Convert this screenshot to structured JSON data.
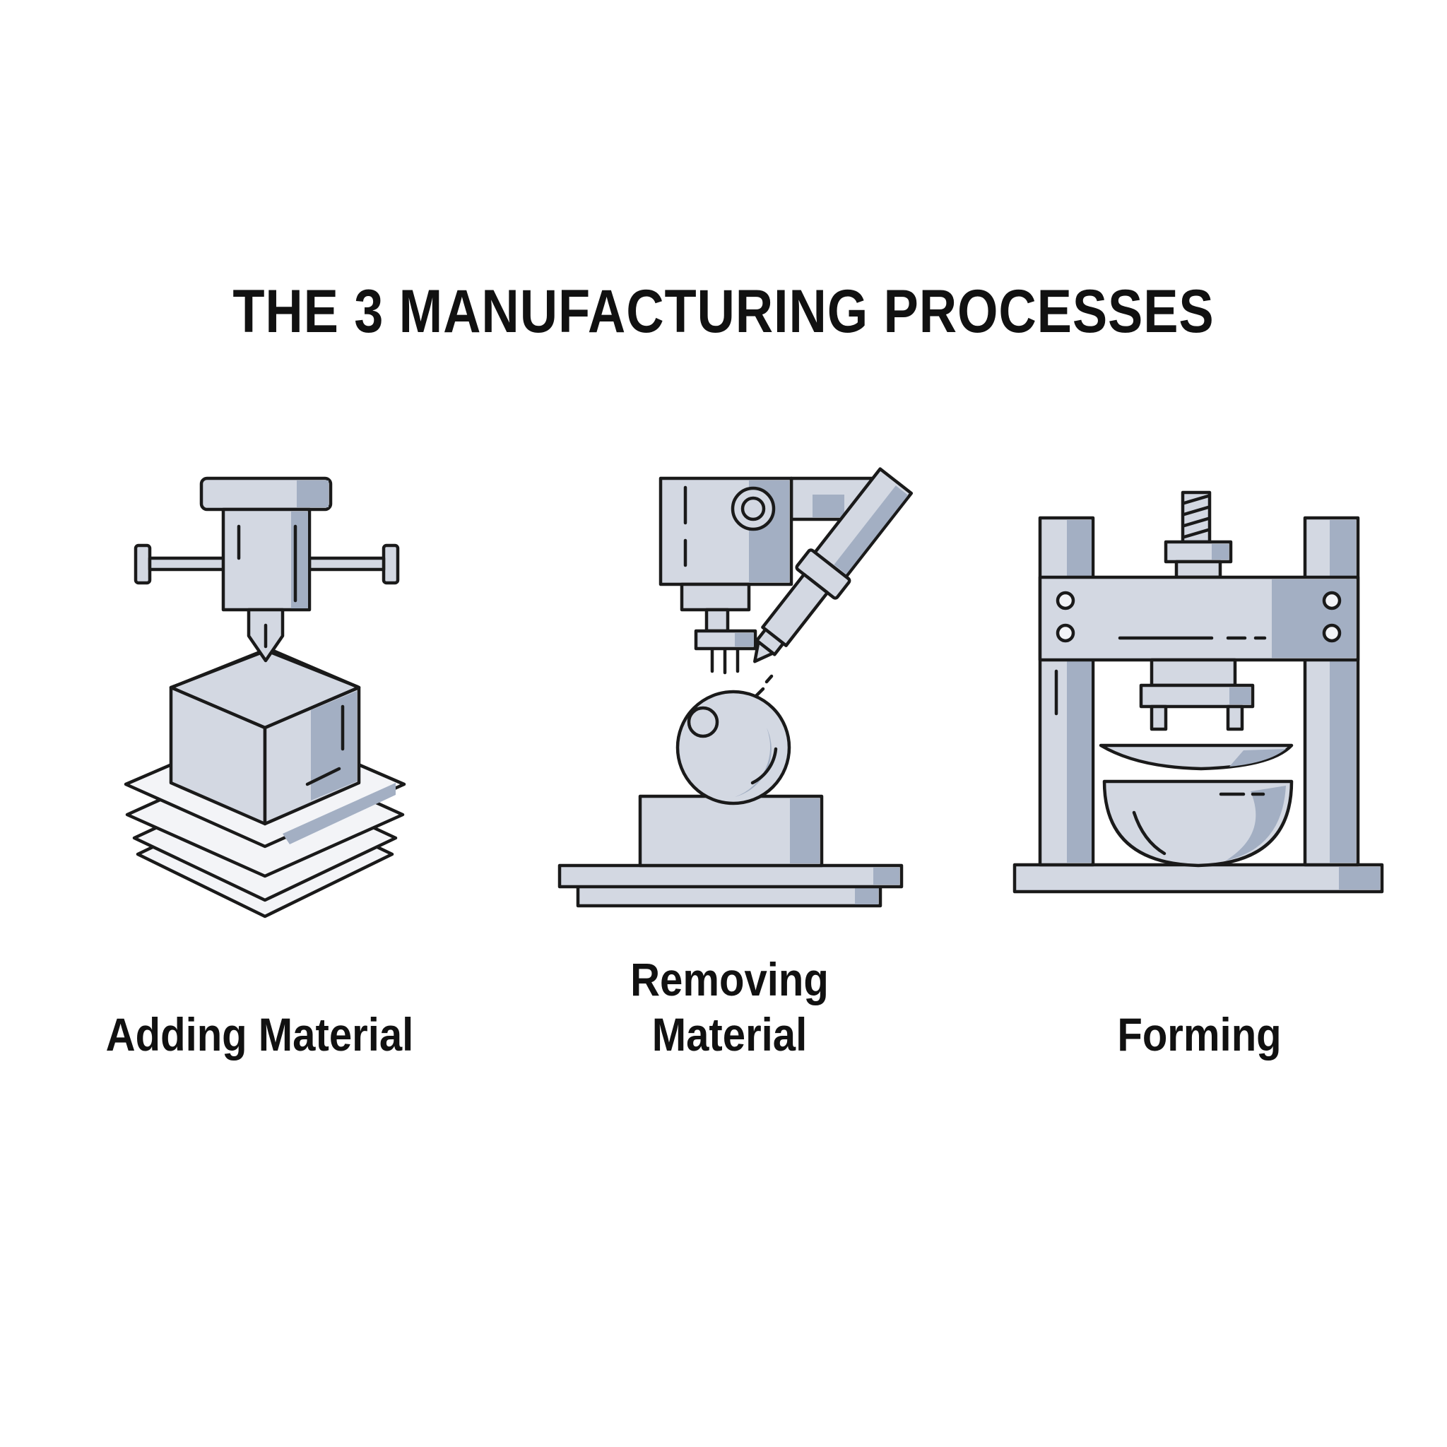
{
  "title": "THE 3 MANUFACTURING PROCESSES",
  "processes": [
    {
      "label_lines": [
        "Adding Material"
      ],
      "icon": "3d-printer-icon"
    },
    {
      "label_lines": [
        "Removing",
        "Material"
      ],
      "icon": "milling-machine-icon"
    },
    {
      "label_lines": [
        "Forming"
      ],
      "icon": "hydraulic-press-icon"
    }
  ],
  "colors": {
    "background": "#ffffff",
    "text": "#111111",
    "fill": "#d3d8e2",
    "shade": "#a3afc3",
    "outline": "#1a1a1a"
  }
}
